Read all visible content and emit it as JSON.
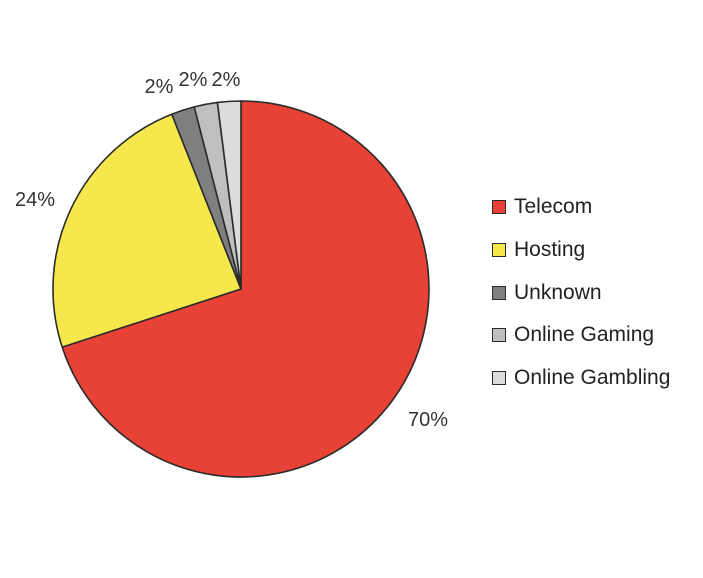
{
  "chart_data": {
    "type": "pie",
    "title": "",
    "slices": [
      {
        "label": "Telecom",
        "value": 70,
        "display": "70%",
        "color": "#e84135"
      },
      {
        "label": "Hosting",
        "value": 24,
        "display": "24%",
        "color": "#f6e84c"
      },
      {
        "label": "Unknown",
        "value": 2,
        "display": "2%",
        "color": "#7f7f7f"
      },
      {
        "label": "Online Gaming",
        "value": 2,
        "display": "2%",
        "color": "#bfbfbf"
      },
      {
        "label": "Online Gambling",
        "value": 2,
        "display": "2%",
        "color": "#dcdcdc"
      }
    ],
    "legend": {
      "position": "right"
    },
    "start_angle": "12 o'clock",
    "direction": "clockwise"
  }
}
